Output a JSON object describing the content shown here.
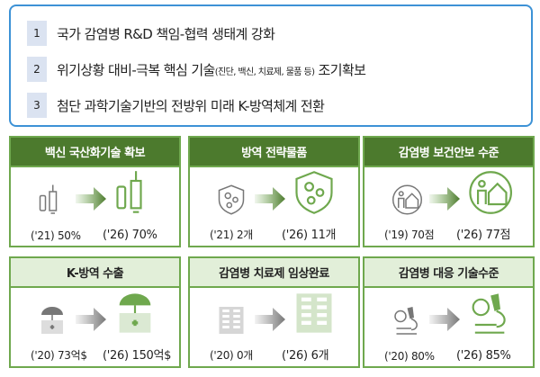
{
  "goals": [
    {
      "num": "1",
      "text": "국가 감염병 R&D 책임-협력 생태계 강화"
    },
    {
      "num": "2",
      "text": "위기상황 대비-극복 핵심 기술",
      "note": "(진단, 백신, 치료제, 물품 등)",
      "text2": " 조기확보"
    },
    {
      "num": "3",
      "text": "첨단 과학기술기반의 전방위 미래 K-방역체계 전환"
    }
  ],
  "cards": [
    {
      "title": "백신 국산화기술 확보",
      "from": "('21) 50%",
      "to": "('26) 70%",
      "icon": "vaccine-icon"
    },
    {
      "title": "방역 전략물품",
      "from": "('21) 2개",
      "to": "('26) 11개",
      "icon": "virus-shield-icon"
    },
    {
      "title": "감염병 보건안보 수준",
      "from": "('19) 70점",
      "to": "('26) 77점",
      "icon": "person-house-icon"
    },
    {
      "title": "K-방역 수출",
      "from": "('20) 73억$",
      "to": "('26) 150억$",
      "icon": "umbrella-medkit-icon"
    },
    {
      "title": "감염병 치료제 임상완료",
      "from": "('20) 0개",
      "to": "('26) 6개",
      "icon": "pill-pack-icon"
    },
    {
      "title": "감염병 대응 기술수준",
      "from": "('20) 80%",
      "to": "('26) 85%",
      "icon": "microscope-icon"
    }
  ],
  "colors": {
    "border_blue": "#3d92d6",
    "green_dark": "#4c7a2d",
    "green": "#6fa84e",
    "green_light": "#e2efd9",
    "gray": "#777777"
  }
}
